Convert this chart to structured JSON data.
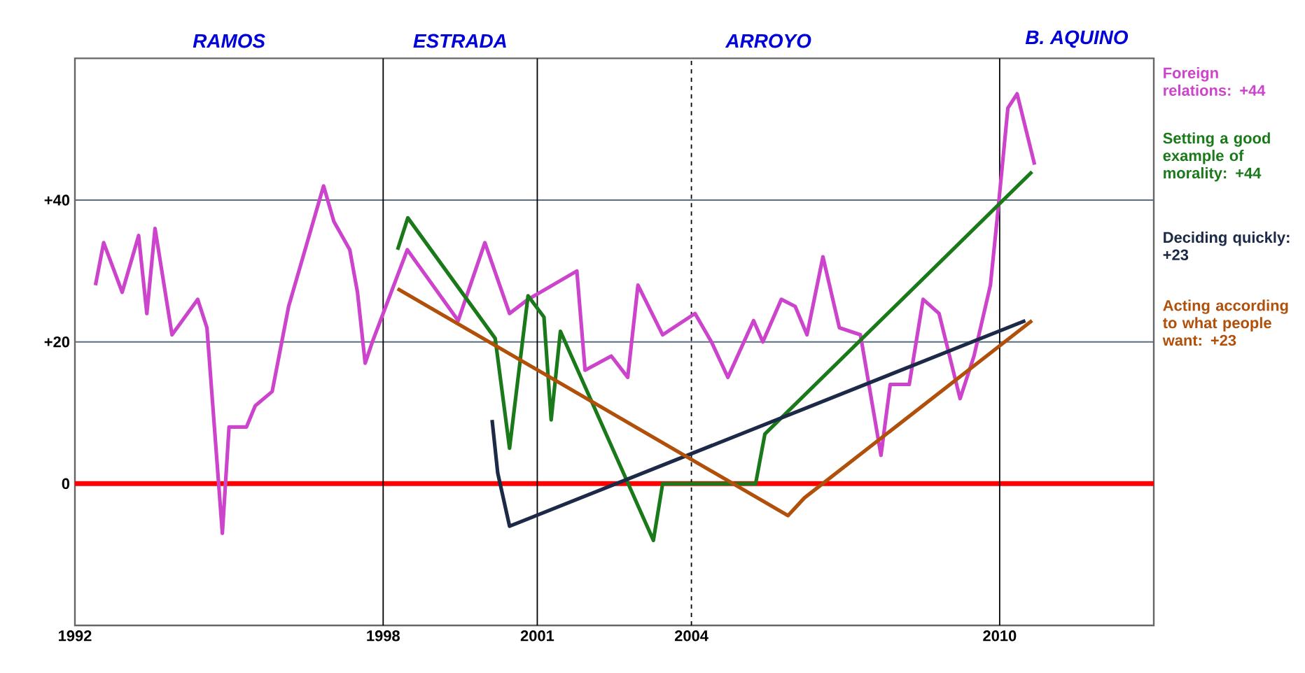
{
  "chart_data": {
    "type": "line",
    "xlim": [
      1992,
      2013
    ],
    "ylim": [
      -20,
      60
    ],
    "xticks": [
      1992,
      1998,
      2001,
      2004,
      2010
    ],
    "yticks": [
      0,
      {
        "value": 20,
        "label": "+20"
      },
      {
        "value": 40,
        "label": "+40"
      }
    ],
    "grid": "y",
    "ref_lines": [
      {
        "axis": "y",
        "value": 0,
        "color": "#ff0000"
      },
      {
        "axis": "x",
        "value": 1998,
        "color": "#000000",
        "line_style": "solid"
      },
      {
        "axis": "x",
        "value": 2001,
        "color": "#000000",
        "line_style": "solid"
      },
      {
        "axis": "x",
        "value": 2004,
        "color": "#000000",
        "line_style": "dashed"
      },
      {
        "axis": "x",
        "value": 2010,
        "color": "#000000",
        "line_style": "solid"
      }
    ],
    "annotations": [
      "RAMOS",
      "ESTRADA",
      "ARROYO",
      "B. AQUINO"
    ],
    "series": [
      {
        "name": "Foreign relations: +44",
        "color": "#cc44cc",
        "x": [
          1992.4,
          1992.56,
          1992.92,
          1993.24,
          1993.4,
          1993.56,
          1993.89,
          1994.39,
          1994.57,
          1994.87,
          1995.0,
          1995.34,
          1995.51,
          1995.84,
          1996.16,
          1996.84,
          1997.04,
          1997.35,
          1997.5,
          1997.65,
          1997.79,
          1998.47,
          1999.46,
          1999.98,
          2000.46,
          2000.82,
          2001.77,
          2001.93,
          2002.44,
          2002.76,
          2002.96,
          2003.44,
          2004.07,
          2004.39,
          2004.71,
          2005.21,
          2005.39,
          2005.75,
          2006.02,
          2006.25,
          2006.56,
          2006.88,
          2007.29,
          2007.69,
          2007.87,
          2008.24,
          2008.51,
          2008.82,
          2009.23,
          2009.5,
          2009.82,
          2009.96,
          2010.16,
          2010.34,
          2010.68
        ],
        "values": [
          28,
          34,
          27,
          35,
          24,
          36,
          21,
          26,
          22,
          -7,
          8,
          8,
          11,
          13,
          25,
          42,
          37,
          33,
          27,
          17,
          20,
          33,
          23,
          34,
          24,
          26,
          30,
          16,
          18,
          15,
          28,
          21,
          24,
          20,
          15,
          23,
          20,
          26,
          25,
          21,
          32,
          22,
          21,
          4,
          14,
          14,
          26,
          24,
          12,
          18,
          28,
          38,
          53,
          55,
          45
        ]
      },
      {
        "name": "Setting a good example of morality: +44",
        "color": "#1a7a1a",
        "x": [
          1998.28,
          1998.48,
          2000.18,
          2000.46,
          2000.82,
          2001.13,
          2001.27,
          2001.45,
          2003.26,
          2003.44,
          2005.25,
          2005.43,
          2010.63
        ],
        "values": [
          33,
          37.5,
          20.5,
          5,
          26.5,
          23.5,
          9,
          21.5,
          -8,
          0,
          0,
          7,
          44
        ]
      },
      {
        "name": "Deciding quickly: +23",
        "color": "#1c2a48",
        "x": [
          2000.12,
          2000.23,
          2000.46,
          2010.5
        ],
        "values": [
          9,
          1.5,
          -6,
          23
        ]
      },
      {
        "name": "Acting according to what people want: +23",
        "color": "#b0500a",
        "x": [
          1998.28,
          2005.88,
          2006.2,
          2010.63
        ],
        "values": [
          27.5,
          -4.5,
          -2,
          23
        ]
      }
    ]
  }
}
